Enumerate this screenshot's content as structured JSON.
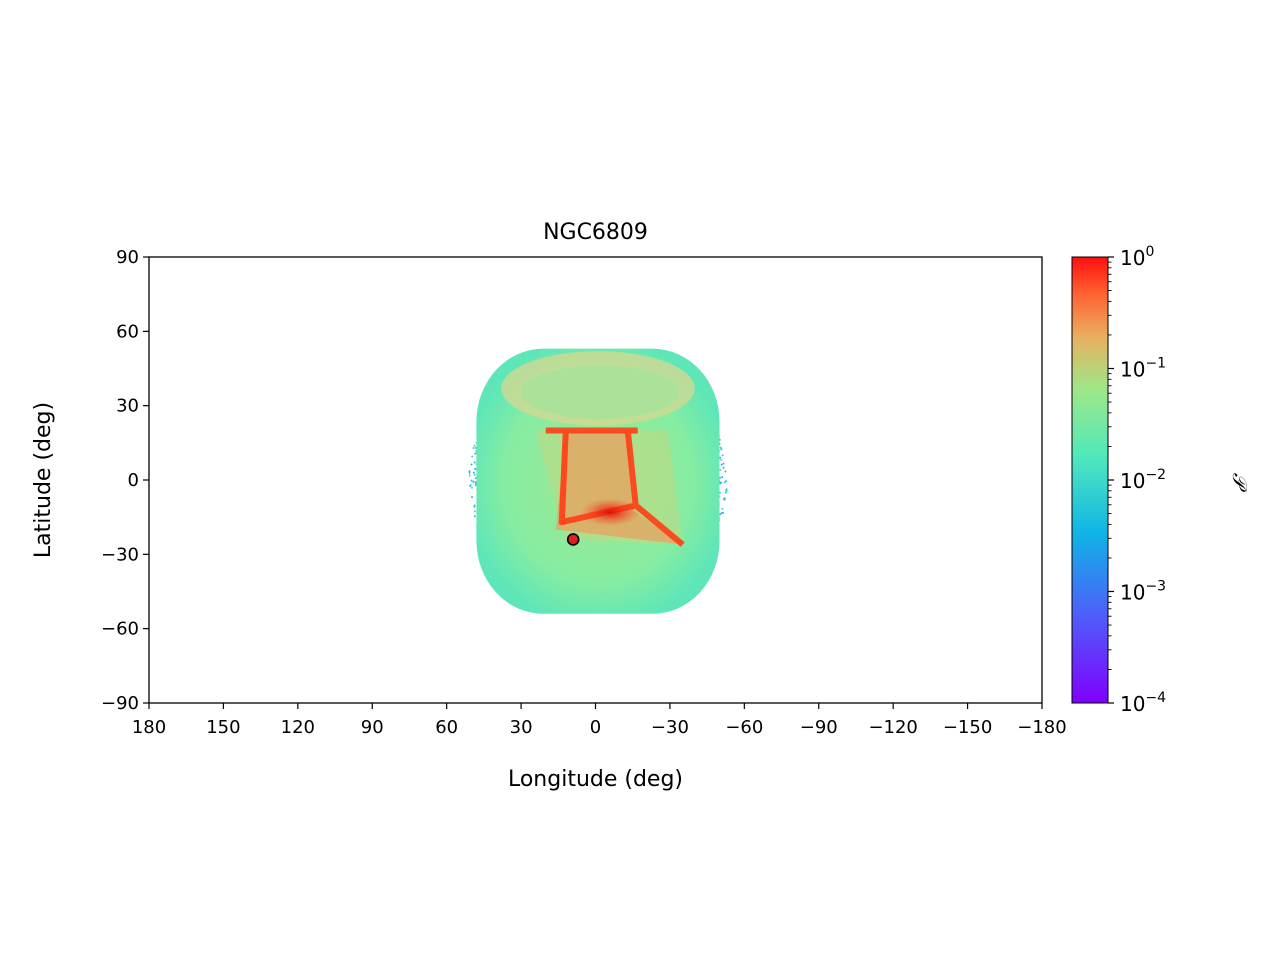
{
  "chart_data": {
    "type": "heatmap",
    "title": "NGC6809",
    "xlabel": "Longitude (deg)",
    "ylabel": "Latitude (deg)",
    "xlim": [
      180,
      -180
    ],
    "ylim": [
      -90,
      90
    ],
    "x_ticks": [
      180,
      150,
      120,
      90,
      60,
      30,
      0,
      -30,
      -60,
      -90,
      -120,
      -150,
      -180
    ],
    "x_tick_labels": [
      "180",
      "150",
      "120",
      "90",
      "60",
      "30",
      "0",
      "−30",
      "−60",
      "−90",
      "−120",
      "−150",
      "−180"
    ],
    "y_ticks": [
      90,
      60,
      30,
      0,
      -30,
      -60,
      -90
    ],
    "y_tick_labels": [
      "90",
      "60",
      "30",
      "0",
      "−30",
      "−60",
      "−90"
    ],
    "grid": false,
    "colorbar": {
      "label": "𝒫",
      "scale": "log",
      "range": [
        0.0001,
        1
      ],
      "cmap": "rainbow",
      "tick_values": [
        0.0001,
        0.001,
        0.01,
        0.1,
        1
      ],
      "tick_labels": [
        {
          "base": "10",
          "exp": "−4"
        },
        {
          "base": "10",
          "exp": "−3"
        },
        {
          "base": "10",
          "exp": "−2"
        },
        {
          "base": "10",
          "exp": "−1"
        },
        {
          "base": "10",
          "exp": "0"
        }
      ],
      "colors": [
        "#8000ff",
        "#0fa9e8",
        "#45e5c0",
        "#99e58a",
        "#e6a660",
        "#ff1f0f"
      ]
    },
    "cluster_marker": {
      "lon": 9,
      "lat": -24,
      "color": "#e0201a"
    },
    "density_regions": [
      {
        "name": "sky-envelope",
        "lon_range": [
          48,
          -50
        ],
        "lat_range": [
          -54,
          53
        ],
        "color": "#8af0a0"
      },
      {
        "name": "north-cap",
        "lon_range": [
          38,
          -40
        ],
        "lat_range": [
          22,
          52
        ],
        "color": "#d7d890"
      },
      {
        "name": "rim-scatter",
        "lon_range": [
          50,
          -52
        ],
        "lat_range": [
          -52,
          52
        ],
        "color": "#1fb7e8"
      },
      {
        "name": "orbit-box",
        "lon_range": [
          12,
          -13
        ],
        "lat_range": [
          -22,
          20
        ],
        "color": "#ff3d14"
      },
      {
        "name": "peak",
        "lon": -6,
        "lat": -13,
        "color": "#e8140a"
      }
    ]
  }
}
